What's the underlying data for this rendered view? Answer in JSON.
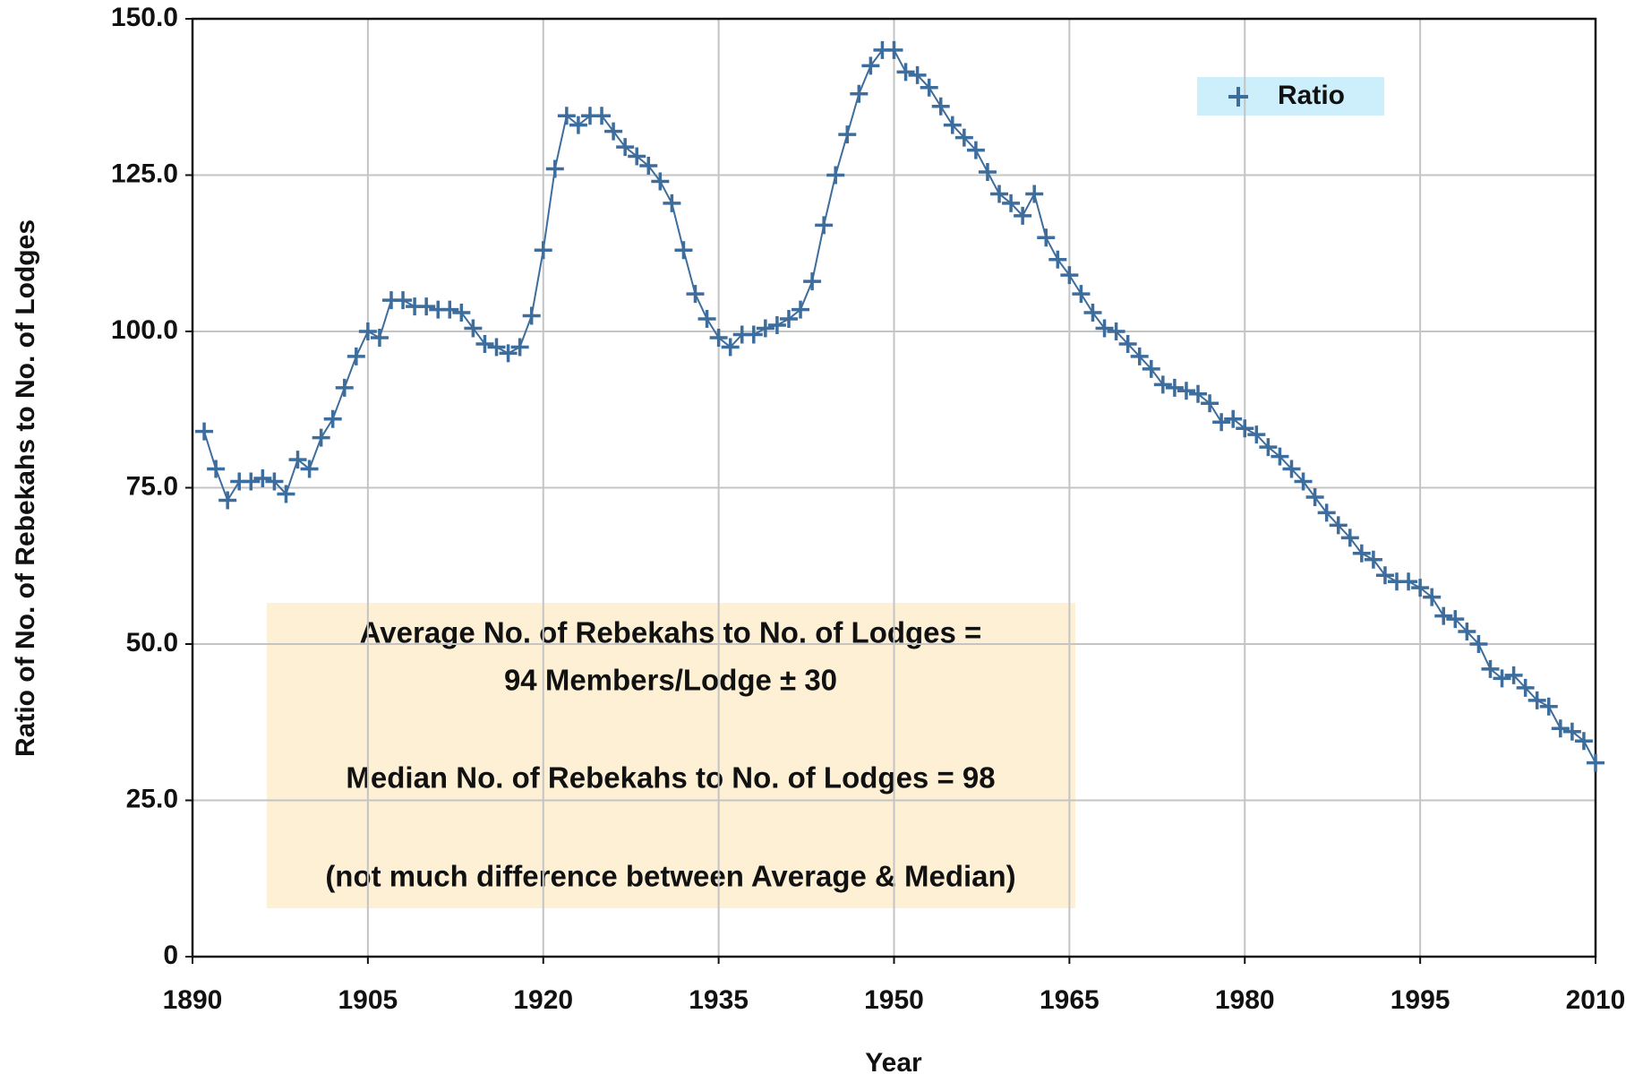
{
  "chart_data": {
    "type": "line",
    "x_label": "Year",
    "y_label": "Ratio of No. of Rebekahs to No. of Lodges",
    "x": [
      1891,
      1892,
      1893,
      1894,
      1895,
      1896,
      1897,
      1898,
      1899,
      1900,
      1901,
      1902,
      1903,
      1904,
      1905,
      1906,
      1907,
      1908,
      1909,
      1910,
      1911,
      1912,
      1913,
      1914,
      1915,
      1916,
      1917,
      1918,
      1919,
      1920,
      1921,
      1922,
      1923,
      1924,
      1925,
      1926,
      1927,
      1928,
      1929,
      1930,
      1931,
      1932,
      1933,
      1934,
      1935,
      1936,
      1937,
      1938,
      1939,
      1940,
      1941,
      1942,
      1943,
      1944,
      1945,
      1946,
      1947,
      1948,
      1949,
      1950,
      1951,
      1952,
      1953,
      1954,
      1955,
      1956,
      1957,
      1958,
      1959,
      1960,
      1961,
      1962,
      1963,
      1964,
      1965,
      1966,
      1967,
      1968,
      1969,
      1970,
      1971,
      1972,
      1973,
      1974,
      1975,
      1976,
      1977,
      1978,
      1979,
      1980,
      1981,
      1982,
      1983,
      1984,
      1985,
      1986,
      1987,
      1988,
      1989,
      1990,
      1991,
      1992,
      1993,
      1994,
      1995,
      1996,
      1997,
      1998,
      1999,
      2000,
      2001,
      2002,
      2003,
      2004,
      2005,
      2006,
      2007,
      2008,
      2009,
      2010
    ],
    "series": [
      {
        "name": "Ratio",
        "color": "#3d6d9c",
        "values": [
          84,
          78,
          73,
          76,
          76,
          76.5,
          76,
          74,
          79.5,
          78,
          83,
          86,
          91,
          96,
          100,
          99,
          105,
          105,
          104,
          104,
          103.5,
          103.5,
          103,
          100.5,
          98,
          97.5,
          96.5,
          97.5,
          102.5,
          113,
          126,
          134.5,
          133,
          134.5,
          134.5,
          132,
          129.5,
          128,
          126.5,
          124,
          120.5,
          113,
          106,
          102,
          99,
          97.5,
          99.5,
          99.5,
          100.5,
          101,
          102,
          103.5,
          108,
          117,
          125,
          131.5,
          138,
          142.5,
          145,
          145,
          141.5,
          141,
          139,
          136,
          133,
          131,
          129,
          125.5,
          122,
          120.5,
          118.5,
          122,
          115,
          111.5,
          109,
          106,
          103,
          100.5,
          100,
          98,
          96,
          94,
          91.5,
          91,
          90.5,
          90,
          88.5,
          85.5,
          86,
          84.5,
          83.5,
          81.5,
          80,
          78,
          76,
          73.5,
          71,
          69,
          67,
          64.5,
          63.5,
          61,
          60,
          60,
          59,
          57.5,
          54.5,
          54,
          52,
          50,
          46,
          44.5,
          45,
          43,
          41,
          40,
          36.5,
          36,
          34.5,
          31
        ]
      }
    ],
    "xlim": [
      1890,
      2010
    ],
    "xticks": [
      1890,
      1905,
      1920,
      1935,
      1950,
      1965,
      1980,
      1995,
      2010
    ],
    "ylim": [
      0,
      150
    ],
    "yticks": [
      0,
      {
        "value": 25,
        "label": "25.0"
      },
      {
        "value": 50,
        "label": "50.0"
      },
      {
        "value": 75,
        "label": "75.0"
      },
      {
        "value": 100,
        "label": "100.0"
      },
      {
        "value": 125,
        "label": "125.0"
      },
      {
        "value": 150,
        "label": "150.0"
      }
    ],
    "grid": true,
    "legend": "upper right",
    "annotations": [
      "Average No. of Rebekahs to No. of Lodges =",
      "94 Members/Lodge ± 30",
      "Median No. of Rebekahs to No. of Lodges = 98",
      "(not much difference between Average & Median)"
    ]
  }
}
